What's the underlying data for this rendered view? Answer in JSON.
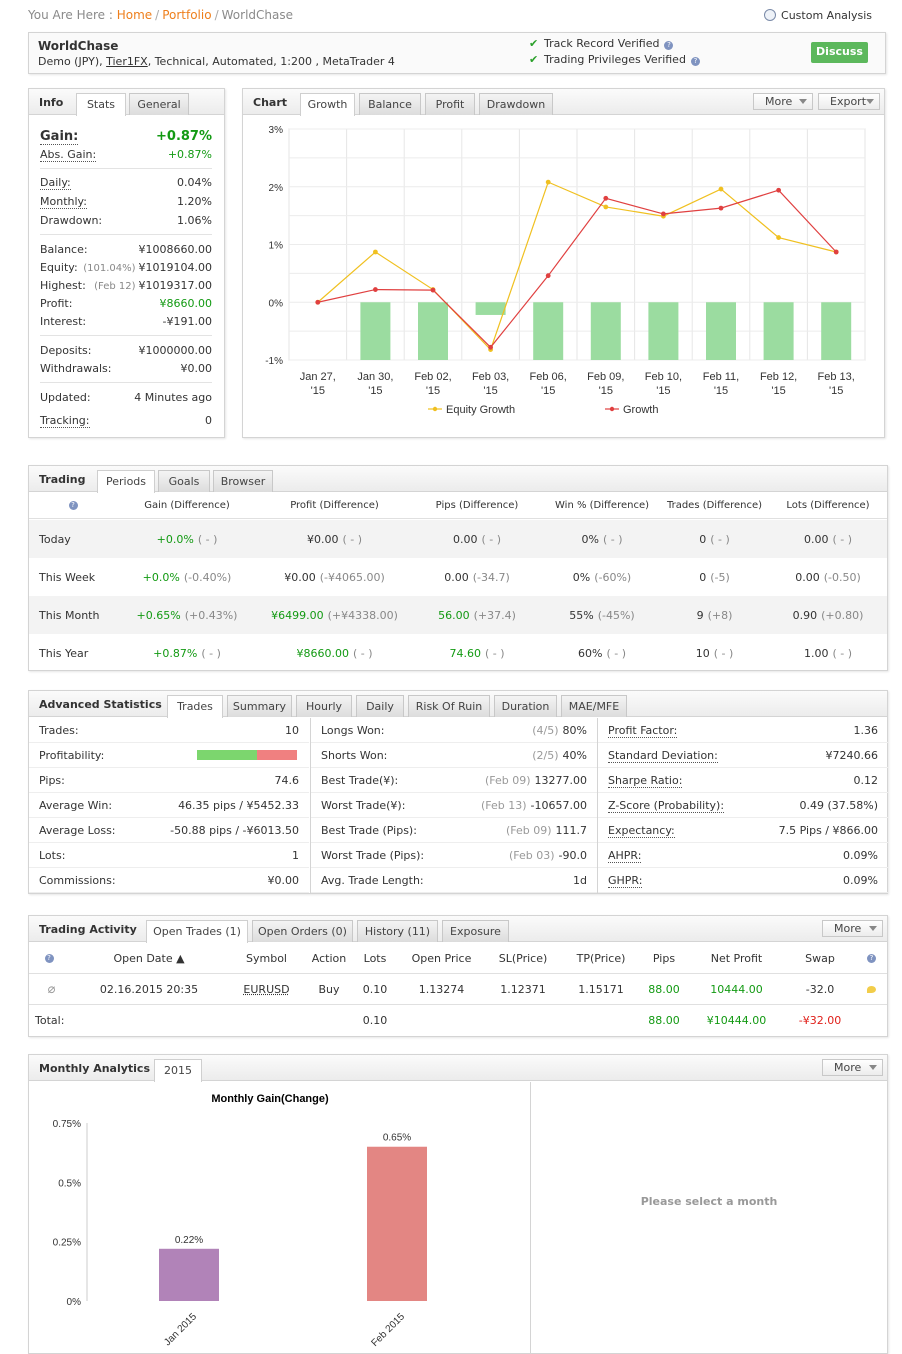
{
  "breadcrumb": {
    "prefix": "You Are Here :",
    "home": "Home",
    "portfolio": "Portfolio",
    "current": "WorldChase"
  },
  "custom_analysis": "Custom Analysis",
  "account": {
    "name": "WorldChase",
    "desc_prefix": "Demo (JPY),",
    "broker": "Tier1FX",
    "desc_suffix": ", Technical, Automated, 1:200 , MetaTrader 4",
    "track_record": "Track Record Verified",
    "trading_privileges": "Trading Privileges Verified",
    "discuss": "Discuss"
  },
  "info": {
    "title": "Info",
    "tabs": [
      "Stats",
      "General"
    ],
    "gain_label": "Gain:",
    "gain": "+0.87%",
    "abs_gain_label": "Abs. Gain:",
    "abs_gain": "+0.87%",
    "daily_label": "Daily:",
    "daily": "0.04%",
    "monthly_label": "Monthly:",
    "monthly": "1.20%",
    "drawdown_label": "Drawdown:",
    "drawdown": "1.06%",
    "balance_label": "Balance:",
    "balance": "¥1008660.00",
    "equity_label": "Equity:",
    "equity_pct": "(101.04%)",
    "equity": "¥1019104.00",
    "highest_label": "Highest:",
    "highest_date": "(Feb 12)",
    "highest": "¥1019317.00",
    "profit_label": "Profit:",
    "profit": "¥8660.00",
    "interest_label": "Interest:",
    "interest": "-¥191.00",
    "deposits_label": "Deposits:",
    "deposits": "¥1000000.00",
    "withdrawals_label": "Withdrawals:",
    "withdrawals": "¥0.00",
    "updated_label": "Updated:",
    "updated": "4 Minutes ago",
    "tracking_label": "Tracking:",
    "tracking": "0"
  },
  "chart": {
    "title": "Chart",
    "tabs": [
      "Growth",
      "Balance",
      "Profit",
      "Drawdown"
    ],
    "more": "More",
    "export": "Export"
  },
  "chart_data": [
    {
      "type": "line",
      "categories": [
        "Jan 27, '15",
        "Jan 30, '15",
        "Feb 02, '15",
        "Feb 03, '15",
        "Feb 06, '15",
        "Feb 09, '15",
        "Feb 10, '15",
        "Feb 11, '15",
        "Feb 12, '15",
        "Feb 13, '15"
      ],
      "series": [
        {
          "name": "Equity Growth",
          "values": [
            0,
            0.87,
            0.22,
            -0.82,
            2.08,
            1.65,
            1.49,
            1.96,
            1.12,
            0.87
          ],
          "color": "#f0c020"
        },
        {
          "name": "Growth",
          "values": [
            0,
            0.22,
            0.21,
            -0.78,
            0.46,
            1.8,
            1.53,
            1.63,
            1.94,
            0.87
          ],
          "color": "#e04040"
        }
      ],
      "bars": {
        "values": [
          0,
          -1,
          -1,
          -0.22,
          -1,
          -1,
          -1,
          -1,
          -1,
          -1
        ],
        "color": "#9bdca0"
      },
      "y_ticks": [
        "3%",
        "2%",
        "1%",
        "0%",
        "-1%"
      ],
      "ylim": [
        -1,
        3
      ],
      "grid": true,
      "legend": "bottom"
    },
    {
      "type": "bar",
      "title": "Monthly Gain(Change)",
      "categories": [
        "Jan 2015",
        "Feb 2015"
      ],
      "values": [
        0.22,
        0.65
      ],
      "value_labels": [
        "0.22%",
        "0.65%"
      ],
      "colors": [
        "#b183b8",
        "#e38683"
      ],
      "y_ticks": [
        "0.75%",
        "0.5%",
        "0.25%",
        "0%"
      ],
      "ylim": [
        0,
        0.75
      ]
    }
  ],
  "trading": {
    "title": "Trading",
    "tabs": [
      "Periods",
      "Goals",
      "Browser"
    ],
    "headers": [
      "Gain (Difference)",
      "Profit (Difference)",
      "Pips (Difference)",
      "Win % (Difference)",
      "Trades (Difference)",
      "Lots (Difference)"
    ],
    "rows": [
      {
        "period": "Today",
        "gain": "+0.0%",
        "gain_d": "( - )",
        "profit": "¥0.00",
        "profit_d": "( - )",
        "pips": "0.00",
        "pips_d": "( - )",
        "win": "0%",
        "win_d": "( - )",
        "trades": "0",
        "trades_d": "( - )",
        "lots": "0.00",
        "lots_d": "( - )"
      },
      {
        "period": "This Week",
        "gain": "+0.0%",
        "gain_d": "(-0.40%)",
        "profit": "¥0.00",
        "profit_d": "(-¥4065.00)",
        "pips": "0.00",
        "pips_d": "(-34.7)",
        "win": "0%",
        "win_d": "(-60%)",
        "trades": "0",
        "trades_d": "(-5)",
        "lots": "0.00",
        "lots_d": "(-0.50)"
      },
      {
        "period": "This Month",
        "gain": "+0.65%",
        "gain_d": "(+0.43%)",
        "profit": "¥6499.00",
        "profit_d": "(+¥4338.00)",
        "pips": "56.00",
        "pips_d": "(+37.4)",
        "win": "55%",
        "win_d": "(-45%)",
        "trades": "9",
        "trades_d": "(+8)",
        "lots": "0.90",
        "lots_d": "(+0.80)"
      },
      {
        "period": "This Year",
        "gain": "+0.87%",
        "gain_d": "( - )",
        "profit": "¥8660.00",
        "profit_d": "( - )",
        "pips": "74.60",
        "pips_d": "( - )",
        "win": "60%",
        "win_d": "( - )",
        "trades": "10",
        "trades_d": "( - )",
        "lots": "1.00",
        "lots_d": "( - )"
      }
    ]
  },
  "advanced": {
    "title": "Advanced Statistics",
    "tabs": [
      "Trades",
      "Summary",
      "Hourly",
      "Daily",
      "Risk Of Ruin",
      "Duration",
      "MAE/MFE"
    ],
    "col1": [
      {
        "k": "Trades:",
        "v": "10"
      },
      {
        "k": "Profitability:",
        "v": "",
        "bar": 0.6
      },
      {
        "k": "Pips:",
        "v": "74.6"
      },
      {
        "k": "Average Win:",
        "v": "46.35 pips / ¥5452.33"
      },
      {
        "k": "Average Loss:",
        "v": "-50.88 pips / -¥6013.50"
      },
      {
        "k": "Lots:",
        "v": "1"
      },
      {
        "k": "Commissions:",
        "v": "¥0.00"
      }
    ],
    "col2": [
      {
        "k": "Longs Won:",
        "d": "(4/5)",
        "v": "80%"
      },
      {
        "k": "Shorts Won:",
        "d": "(2/5)",
        "v": "40%"
      },
      {
        "k": "Best Trade(¥):",
        "d": "(Feb 09)",
        "v": "13277.00"
      },
      {
        "k": "Worst Trade(¥):",
        "d": "(Feb 13)",
        "v": "-10657.00"
      },
      {
        "k": "Best Trade (Pips):",
        "d": "(Feb 09)",
        "v": "111.7"
      },
      {
        "k": "Worst Trade (Pips):",
        "d": "(Feb 03)",
        "v": "-90.0"
      },
      {
        "k": "Avg. Trade Length:",
        "d": "",
        "v": "1d"
      }
    ],
    "col3": [
      {
        "k": "Profit Factor:",
        "v": "1.36"
      },
      {
        "k": "Standard Deviation:",
        "v": "¥7240.66"
      },
      {
        "k": "Sharpe Ratio:",
        "v": "0.12"
      },
      {
        "k": "Z-Score (Probability):",
        "v": "0.49 (37.58%)"
      },
      {
        "k": "Expectancy:",
        "v": "7.5 Pips / ¥866.00"
      },
      {
        "k": "AHPR:",
        "v": "0.09%"
      },
      {
        "k": "GHPR:",
        "v": "0.09%"
      }
    ]
  },
  "activity": {
    "title": "Trading Activity",
    "tabs": [
      "Open Trades (1)",
      "Open Orders (0)",
      "History (11)",
      "Exposure"
    ],
    "more": "More",
    "headers": [
      "Open Date ▲",
      "Symbol",
      "Action",
      "Lots",
      "Open Price",
      "SL(Price)",
      "TP(Price)",
      "Pips",
      "Net Profit",
      "Swap"
    ],
    "row": {
      "date": "02.16.2015 20:35",
      "symbol": "EURUSD",
      "action": "Buy",
      "lots": "0.10",
      "open": "1.13274",
      "sl": "1.12371",
      "tp": "1.15171",
      "pips": "88.00",
      "profit": "10444.00",
      "swap": "-32.0"
    },
    "total": {
      "label": "Total:",
      "lots": "0.10",
      "pips": "88.00",
      "profit": "¥10444.00",
      "swap": "-¥32.00"
    }
  },
  "monthly": {
    "title": "Monthly Analytics",
    "tabs": [
      "2015"
    ],
    "more": "More",
    "placeholder": "Please select a month"
  }
}
